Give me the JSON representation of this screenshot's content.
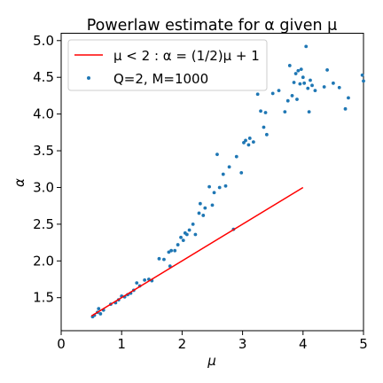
{
  "chart_data": {
    "type": "scatter",
    "title": "Powerlaw estimate for α given μ",
    "xlabel": "μ",
    "ylabel": "α",
    "xlim": [
      0,
      5
    ],
    "ylim": [
      1.05,
      5.1
    ],
    "xticks": [
      0,
      1,
      2,
      3,
      4,
      5
    ],
    "yticks": [
      1.5,
      2.0,
      2.5,
      3.0,
      3.5,
      4.0,
      4.5,
      5.0
    ],
    "xtick_labels": [
      "0",
      "1",
      "2",
      "3",
      "4",
      "5"
    ],
    "ytick_labels": [
      "1.5",
      "2.0",
      "2.5",
      "3.0",
      "3.5",
      "4.0",
      "4.5",
      "5.0"
    ],
    "grid": false,
    "legend_position": "upper-left",
    "series": [
      {
        "name": "μ < 2 :  α = (1/2)μ + 1",
        "kind": "line",
        "color": "#ff0000",
        "x": [
          0.5,
          4.0
        ],
        "y": [
          1.25,
          3.0
        ]
      },
      {
        "name": "Q=2, M=1000",
        "kind": "scatter",
        "color": "#1f77b4",
        "x": [
          0.52,
          0.55,
          0.6,
          0.62,
          0.65,
          0.7,
          0.82,
          0.9,
          0.95,
          1.0,
          1.05,
          1.1,
          1.15,
          1.2,
          1.25,
          1.3,
          1.38,
          1.45,
          1.5,
          1.62,
          1.7,
          1.78,
          1.8,
          1.82,
          1.88,
          1.93,
          1.98,
          2.02,
          2.05,
          2.08,
          2.12,
          2.18,
          2.22,
          2.28,
          2.3,
          2.35,
          2.38,
          2.45,
          2.5,
          2.53,
          2.58,
          2.62,
          2.68,
          2.72,
          2.78,
          2.85,
          2.9,
          2.98,
          3.02,
          3.05,
          3.1,
          3.12,
          3.18,
          3.25,
          3.3,
          3.35,
          3.38,
          3.4,
          3.5,
          3.6,
          3.7,
          3.75,
          3.78,
          3.82,
          3.85,
          3.88,
          3.9,
          3.92,
          3.95,
          3.97,
          4.0,
          4.02,
          4.05,
          4.08,
          4.1,
          4.12,
          4.15,
          4.2,
          4.35,
          4.4,
          4.5,
          4.6,
          4.7,
          4.75,
          4.98,
          5.0
        ],
        "y": [
          1.24,
          1.26,
          1.3,
          1.35,
          1.28,
          1.33,
          1.41,
          1.43,
          1.47,
          1.52,
          1.51,
          1.54,
          1.56,
          1.6,
          1.7,
          1.66,
          1.74,
          1.75,
          1.73,
          2.03,
          2.02,
          2.12,
          1.93,
          2.14,
          2.14,
          2.22,
          2.32,
          2.28,
          2.38,
          2.36,
          2.42,
          2.5,
          2.36,
          2.65,
          2.78,
          2.62,
          2.72,
          3.01,
          2.76,
          2.93,
          3.45,
          3.0,
          3.18,
          3.02,
          3.28,
          2.43,
          3.42,
          3.2,
          3.61,
          3.64,
          3.58,
          3.67,
          3.62,
          4.27,
          4.04,
          3.82,
          4.02,
          3.72,
          4.28,
          4.32,
          4.03,
          4.18,
          4.66,
          4.25,
          4.43,
          4.55,
          4.2,
          4.59,
          4.41,
          4.61,
          4.5,
          4.42,
          4.92,
          4.35,
          4.03,
          4.46,
          4.39,
          4.32,
          4.37,
          4.6,
          4.42,
          4.36,
          4.07,
          4.22,
          4.53,
          4.45
        ]
      }
    ]
  }
}
